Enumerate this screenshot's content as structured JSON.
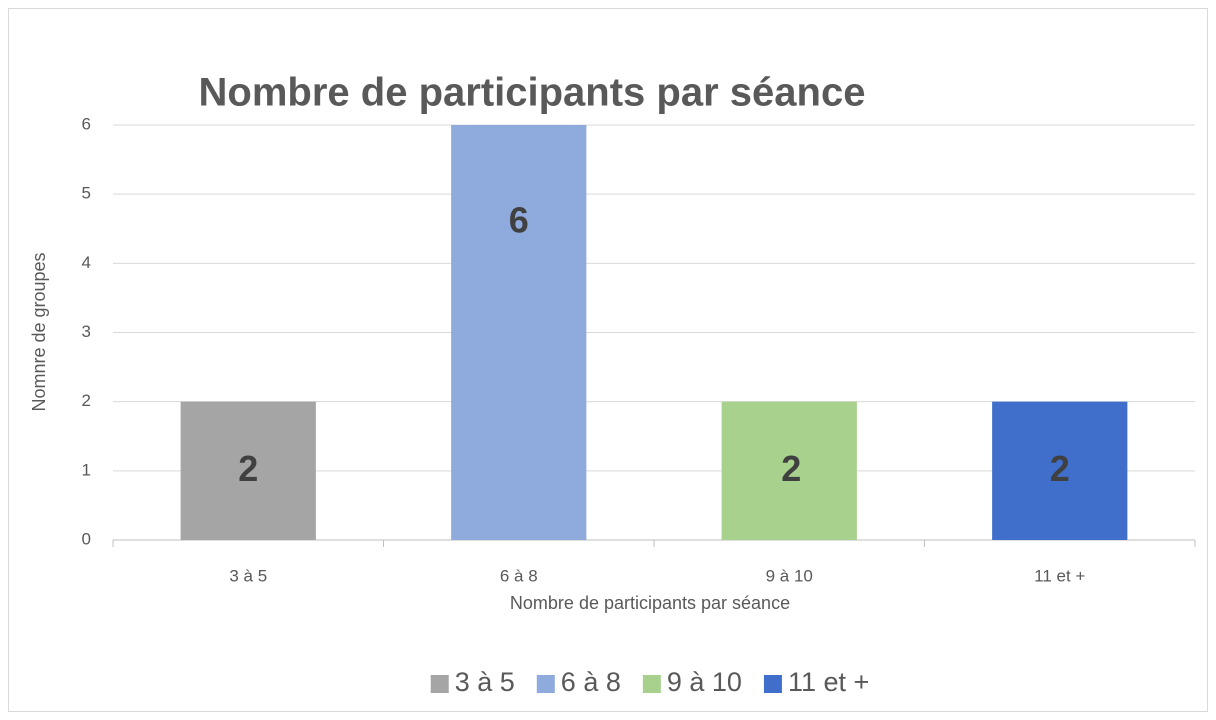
{
  "chart_data": {
    "type": "bar",
    "title": "Nombre de participants par séance",
    "x_label": "Nombre de participants par séance",
    "y_label": "Nomnre de groupes",
    "categories": [
      "3 à 5",
      "6 à 8",
      "9 à 10",
      "11 et +"
    ],
    "values": [
      2,
      6,
      2,
      2
    ],
    "colors": [
      "#a5a5a5",
      "#8faadc",
      "#a9d18e",
      "#3f6fca"
    ],
    "ylim": [
      0,
      6
    ],
    "yticks": [
      0,
      1,
      2,
      3,
      4,
      5,
      6
    ],
    "grid": true,
    "legend": "bottom"
  }
}
